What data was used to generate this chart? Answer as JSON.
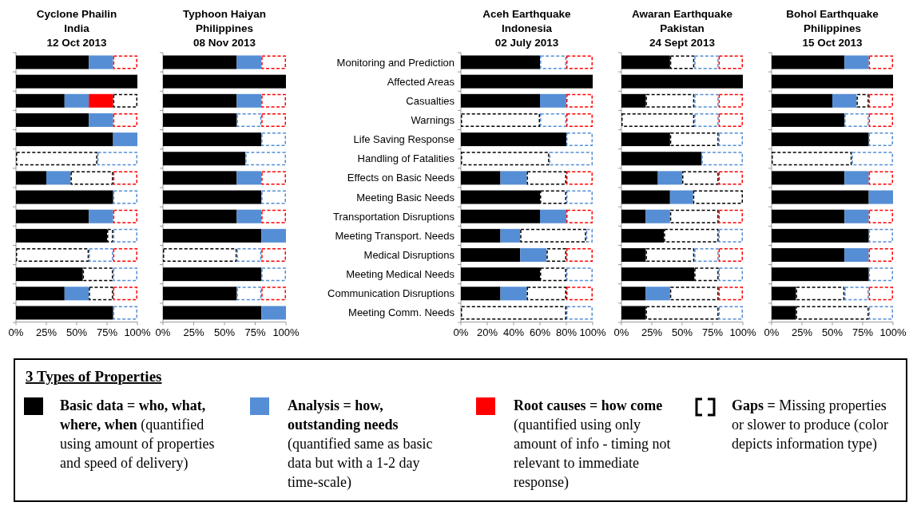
{
  "chart_data": [
    {
      "type": "bar",
      "orientation": "horizontal",
      "stacked": true,
      "title": "Cyclone Phailin\nIndia\n12 Oct 2013",
      "tick_labels": "x",
      "categories": [
        null,
        null,
        null,
        null,
        null,
        null,
        null,
        null,
        null,
        null,
        null,
        null,
        null,
        null
      ],
      "xlim": [
        0,
        100
      ],
      "xticks": [
        {
          "value": 0,
          "label": "0%"
        },
        {
          "value": 25,
          "label": "25%"
        },
        {
          "value": 50,
          "label": "50%"
        },
        {
          "value": 75,
          "label": "75%"
        },
        {
          "value": 100,
          "label": "100%"
        }
      ],
      "series": [
        {
          "color": "#000000",
          "values": [
            60,
            100,
            40,
            60,
            80,
            null,
            25,
            80,
            60,
            75,
            null,
            55,
            40,
            80
          ]
        },
        {
          "color": "#558ed5",
          "values": [
            20,
            null,
            20,
            20,
            20,
            null,
            20,
            null,
            20,
            null,
            null,
            null,
            20,
            null
          ]
        },
        {
          "color": "#ff0000",
          "values": [
            null,
            null,
            20,
            null,
            null,
            null,
            null,
            null,
            null,
            null,
            null,
            null,
            null,
            null
          ]
        },
        {
          "color": "#000000",
          "line_style": "dashed",
          "values": [
            null,
            null,
            20,
            null,
            null,
            67,
            35,
            null,
            null,
            5,
            60,
            25,
            20,
            null
          ]
        },
        {
          "color": "#558ed5",
          "line_style": "dashed",
          "values": [
            null,
            null,
            null,
            null,
            null,
            33,
            null,
            20,
            null,
            20,
            20,
            20,
            null,
            20
          ]
        },
        {
          "color": "#ff0000",
          "line_style": "dashed",
          "values": [
            20,
            null,
            null,
            20,
            null,
            null,
            20,
            null,
            20,
            null,
            20,
            null,
            20,
            null
          ]
        }
      ]
    },
    {
      "type": "bar",
      "orientation": "horizontal",
      "stacked": true,
      "title": "Typhoon Haiyan\nPhilippines\n08 Nov 2013",
      "tick_labels": "x",
      "categories": [
        null,
        null,
        null,
        null,
        null,
        null,
        null,
        null,
        null,
        null,
        null,
        null,
        null,
        null
      ],
      "xlim": [
        0,
        100
      ],
      "xticks": [
        {
          "value": 0,
          "label": "0%"
        },
        {
          "value": 25,
          "label": "25%"
        },
        {
          "value": 50,
          "label": "50%"
        },
        {
          "value": 75,
          "label": "75%"
        },
        {
          "value": 100,
          "label": "100%"
        }
      ],
      "series": [
        {
          "color": "#000000",
          "values": [
            60,
            100,
            60,
            60,
            80,
            67,
            60,
            80,
            60,
            80,
            null,
            80,
            60,
            80
          ]
        },
        {
          "color": "#558ed5",
          "values": [
            20,
            null,
            20,
            null,
            null,
            null,
            20,
            null,
            20,
            20,
            null,
            null,
            null,
            20
          ]
        },
        {
          "color": "#000000",
          "line_style": "dashed",
          "values": [
            null,
            null,
            null,
            null,
            null,
            null,
            null,
            null,
            null,
            null,
            60,
            null,
            null,
            null
          ]
        },
        {
          "color": "#558ed5",
          "line_style": "dashed",
          "values": [
            null,
            null,
            null,
            20,
            20,
            33,
            null,
            20,
            null,
            null,
            20,
            20,
            20,
            null
          ]
        },
        {
          "color": "#ff0000",
          "line_style": "dashed",
          "values": [
            20,
            null,
            20,
            20,
            null,
            null,
            20,
            null,
            20,
            null,
            20,
            null,
            20,
            null
          ]
        }
      ]
    },
    {
      "type": "bar",
      "orientation": "horizontal",
      "stacked": true,
      "title": "Aceh Earthquake\nIndonesia\n02 July 2013",
      "categories": [
        "Monitoring and Prediction",
        "Affected Areas",
        "Casualties",
        "Warnings",
        "Life Saving Response",
        "Handling of Fatalities",
        "Effects on Basic Needs",
        "Meeting Basic Needs",
        "Transportation Disruptions",
        "Meeting Transport. Needs",
        "Medical Disruptions",
        "Meeting Medical Needs",
        "Communication Disruptions",
        "Meeting Comm. Needs"
      ],
      "xlim": [
        0,
        100
      ],
      "xticks": [
        {
          "value": 0,
          "label": "0%"
        },
        {
          "value": 20,
          "label": "20%"
        },
        {
          "value": 40,
          "label": "40%"
        },
        {
          "value": 60,
          "label": "60%"
        },
        {
          "value": 80,
          "label": "80%"
        },
        {
          "value": 100,
          "label": "100%"
        }
      ],
      "series": [
        {
          "color": "#000000",
          "values": [
            60,
            100,
            60,
            null,
            80,
            null,
            30,
            60,
            60,
            30,
            45,
            60,
            30,
            null
          ]
        },
        {
          "color": "#558ed5",
          "values": [
            null,
            null,
            20,
            null,
            null,
            null,
            20,
            null,
            20,
            15,
            20,
            null,
            20,
            null
          ]
        },
        {
          "color": "#000000",
          "line_style": "dashed",
          "values": [
            null,
            null,
            null,
            60,
            null,
            67,
            30,
            20,
            null,
            50,
            15,
            20,
            30,
            80
          ]
        },
        {
          "color": "#558ed5",
          "line_style": "dashed",
          "values": [
            20,
            null,
            null,
            20,
            20,
            33,
            null,
            20,
            null,
            5,
            null,
            20,
            null,
            20
          ]
        },
        {
          "color": "#ff0000",
          "line_style": "dashed",
          "values": [
            20,
            null,
            20,
            20,
            null,
            null,
            20,
            null,
            20,
            null,
            20,
            null,
            20,
            null
          ]
        }
      ]
    },
    {
      "type": "bar",
      "orientation": "horizontal",
      "stacked": true,
      "title": "Awaran Earthquake\nPakistan\n24 Sept 2013",
      "tick_labels": "x",
      "categories": [
        null,
        null,
        null,
        null,
        null,
        null,
        null,
        null,
        null,
        null,
        null,
        null,
        null,
        null
      ],
      "xlim": [
        0,
        100
      ],
      "xticks": [
        {
          "value": 0,
          "label": "0%"
        },
        {
          "value": 25,
          "label": "25%"
        },
        {
          "value": 50,
          "label": "50%"
        },
        {
          "value": 75,
          "label": "75%"
        },
        {
          "value": 100,
          "label": "100%"
        }
      ],
      "series": [
        {
          "color": "#000000",
          "values": [
            40,
            100,
            20,
            null,
            40,
            66,
            30,
            40,
            20,
            35,
            20,
            60,
            20,
            20
          ]
        },
        {
          "color": "#558ed5",
          "values": [
            null,
            null,
            null,
            null,
            null,
            null,
            20,
            19,
            20,
            null,
            null,
            null,
            20,
            null
          ]
        },
        {
          "color": "#000000",
          "line_style": "dashed",
          "values": [
            20,
            null,
            40,
            60,
            40,
            null,
            30,
            41,
            40,
            45,
            40,
            20,
            40,
            60
          ]
        },
        {
          "color": "#558ed5",
          "line_style": "dashed",
          "values": [
            20,
            null,
            20,
            20,
            20,
            34,
            null,
            null,
            null,
            20,
            20,
            20,
            null,
            20
          ]
        },
        {
          "color": "#ff0000",
          "line_style": "dashed",
          "values": [
            20,
            null,
            20,
            20,
            null,
            null,
            20,
            null,
            20,
            null,
            20,
            null,
            20,
            null
          ]
        }
      ]
    },
    {
      "type": "bar",
      "orientation": "horizontal",
      "stacked": true,
      "title": "Bohol Earthquake\nPhilippines\n15 Oct 2013",
      "tick_labels": "x",
      "categories": [
        null,
        null,
        null,
        null,
        null,
        null,
        null,
        null,
        null,
        null,
        null,
        null,
        null,
        null
      ],
      "xlim": [
        0,
        100
      ],
      "xticks": [
        {
          "value": 0,
          "label": "0%"
        },
        {
          "value": 25,
          "label": "25%"
        },
        {
          "value": 50,
          "label": "50%"
        },
        {
          "value": 75,
          "label": "75%"
        },
        {
          "value": 100,
          "label": "100%"
        }
      ],
      "series": [
        {
          "color": "#000000",
          "values": [
            60,
            100,
            50,
            60,
            80,
            null,
            60,
            80,
            60,
            80,
            60,
            80,
            20,
            20
          ]
        },
        {
          "color": "#558ed5",
          "values": [
            20,
            null,
            20,
            null,
            null,
            null,
            20,
            20,
            20,
            null,
            20,
            null,
            null,
            null
          ]
        },
        {
          "color": "#000000",
          "line_style": "dashed",
          "values": [
            null,
            null,
            10,
            null,
            null,
            66,
            null,
            null,
            null,
            null,
            null,
            null,
            40,
            60
          ]
        },
        {
          "color": "#558ed5",
          "line_style": "dashed",
          "values": [
            null,
            null,
            null,
            20,
            20,
            34,
            null,
            null,
            null,
            20,
            null,
            20,
            20,
            20
          ]
        },
        {
          "color": "#ff0000",
          "line_style": "dashed",
          "values": [
            20,
            null,
            20,
            20,
            null,
            null,
            20,
            null,
            20,
            null,
            20,
            null,
            20,
            null
          ]
        }
      ]
    },
    {
      "type": "other",
      "title": "3 Types of Properties",
      "annotations": [
        "Basic data = who, what, where, when",
        "(quantified using amount of properties and speed of delivery)",
        "Analysis = how, outstanding needs",
        "(quantified same as basic data but with a 1-2 day time-scale)",
        "Root causes = how come",
        "(quantified using only amount of info - timing not relevant to immediate response)",
        "Gaps =",
        "Missing properties or slower to produce (color depicts information type)"
      ]
    }
  ]
}
